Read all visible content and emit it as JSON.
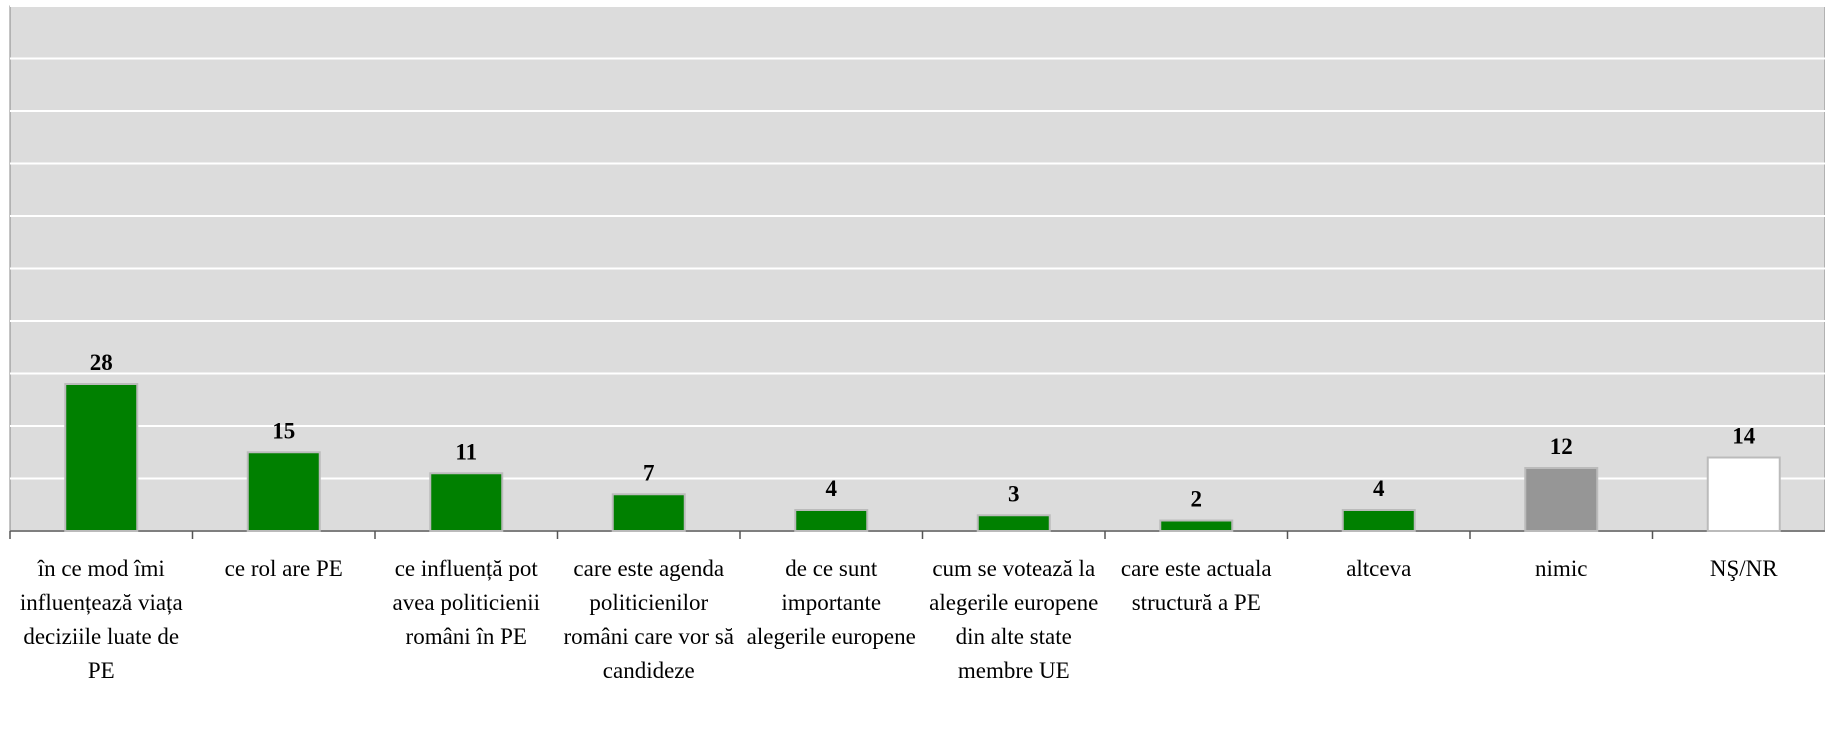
{
  "chart_data": {
    "type": "bar",
    "categories": [
      "în ce mod îmi influențează viața deciziile luate de PE",
      "ce rol are PE",
      "ce influență pot avea politicienii români în PE",
      "care este agenda politicienilor români care vor să candideze",
      "de ce sunt importante alegerile europene",
      "cum se votează la alegerile europene din alte state membre UE",
      "care este actuala structură a PE",
      "altceva",
      "nimic",
      "NŞ/NR"
    ],
    "values": [
      28,
      15,
      11,
      7,
      4,
      3,
      2,
      4,
      12,
      14
    ],
    "colors": [
      "#008000",
      "#008000",
      "#008000",
      "#008000",
      "#008000",
      "#008000",
      "#008000",
      "#008000",
      "#969696",
      "#ffffff"
    ],
    "ylim": [
      0,
      100
    ],
    "yticks": [
      0,
      10,
      20,
      30,
      40,
      50,
      60,
      70,
      80,
      90,
      100
    ],
    "grid": true
  }
}
